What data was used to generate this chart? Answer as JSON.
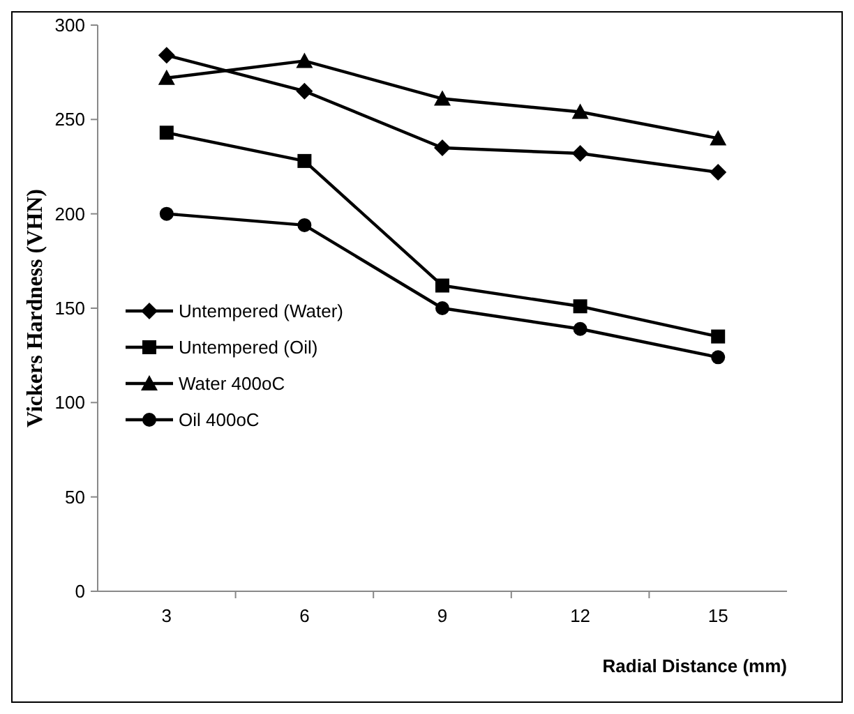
{
  "chart_data": {
    "type": "line",
    "xlabel": "Radial Distance  (mm)",
    "ylabel": "Vickers Hardness (VHN)",
    "categories": [
      "3",
      "6",
      "9",
      "12",
      "15"
    ],
    "ylim": [
      0,
      300
    ],
    "yticks": [
      0,
      50,
      100,
      150,
      200,
      250,
      300
    ],
    "grid": false,
    "legend": "left",
    "series": [
      {
        "name": "Untempered (Water)",
        "color": "#000000",
        "marker": "diamond",
        "values": [
          284,
          265,
          235,
          232,
          222
        ]
      },
      {
        "name": "Untempered (Oil)",
        "color": "#000000",
        "marker": "square",
        "values": [
          243,
          228,
          162,
          151,
          135
        ]
      },
      {
        "name": "Water 400oC",
        "color": "#000000",
        "marker": "triangle",
        "values": [
          272,
          281,
          261,
          254,
          240
        ]
      },
      {
        "name": "Oil 400oC",
        "color": "#000000",
        "marker": "circle",
        "values": [
          200,
          194,
          150,
          139,
          124
        ]
      }
    ]
  }
}
